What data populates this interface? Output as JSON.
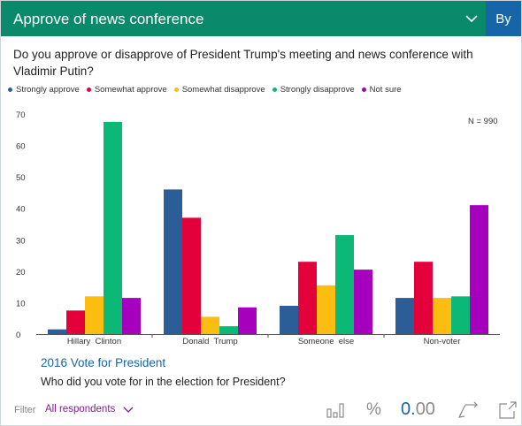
{
  "header": {
    "title": "Approve of news conference",
    "by_label": "By"
  },
  "question": "Do you approve or disapprove of President Trump's meeting and news conference with Vladimir Putin?",
  "legend": [
    {
      "label": "Strongly approve",
      "color": "#2b5d97"
    },
    {
      "label": "Somewhat approve",
      "color": "#e4003b"
    },
    {
      "label": "Somewhat disapprove",
      "color": "#fbbd10"
    },
    {
      "label": "Strongly disapprove",
      "color": "#0cb876"
    },
    {
      "label": "Not sure",
      "color": "#a600be"
    }
  ],
  "chart_data": {
    "type": "bar",
    "categories": [
      "Hillary  Clinton",
      "Donald  Trump",
      "Someone  else",
      "Non-voter"
    ],
    "series": [
      {
        "name": "Strongly approve",
        "values": [
          1.5,
          46,
          9,
          11.5
        ]
      },
      {
        "name": "Somewhat approve",
        "values": [
          7.5,
          37,
          23,
          23
        ]
      },
      {
        "name": "Somewhat disapprove",
        "values": [
          12,
          5.5,
          15.5,
          11.5
        ]
      },
      {
        "name": "Strongly disapprove",
        "values": [
          67.5,
          2.5,
          31.5,
          12
        ]
      },
      {
        "name": "Not sure",
        "values": [
          11.5,
          8.5,
          20.5,
          41
        ]
      }
    ],
    "ylim": [
      0,
      70
    ],
    "yticks": [
      0,
      10,
      20,
      30,
      40,
      50,
      60,
      70
    ],
    "n_label": "N = 990"
  },
  "vote": {
    "title": "2016 Vote for President",
    "question": "Who did you vote for in the election for President?"
  },
  "footer": {
    "filter_label": "Filter",
    "filter_value": "All respondents",
    "percent_symbol": "%",
    "number_main": "0.",
    "number_decimals": "00"
  },
  "icons": {
    "chevron": "chevron-down-icon",
    "bars": "bar-chart-icon",
    "swap": "swap-axes-icon",
    "expand": "expand-icon"
  }
}
